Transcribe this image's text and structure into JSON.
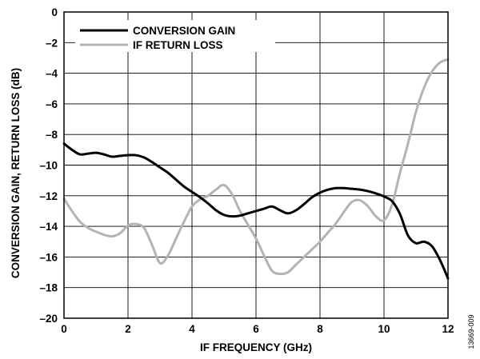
{
  "chart_data": {
    "type": "line",
    "title": "",
    "xlabel": "IF FREQUENCY (GHz)",
    "ylabel": "CONVERSION GAIN, RETURN LOSS (dB)",
    "xlim": [
      0,
      12
    ],
    "ylim": [
      -20,
      0
    ],
    "x_ticks": [
      "0",
      "2",
      "4",
      "6",
      "8",
      "10",
      "12"
    ],
    "y_ticks": [
      "0",
      "–2",
      "–4",
      "–6",
      "–8",
      "–10",
      "–12",
      "–14",
      "–16",
      "–18",
      "–20"
    ],
    "grid": true,
    "legend_position": "top-left",
    "figure_id": "13669-009",
    "series": [
      {
        "name": "CONVERSION GAIN",
        "color": "#000000",
        "x": [
          0,
          0.25,
          0.5,
          0.75,
          1.0,
          1.25,
          1.5,
          1.75,
          2.0,
          2.25,
          2.5,
          2.75,
          3.0,
          3.25,
          3.5,
          3.75,
          4.0,
          4.25,
          4.5,
          4.75,
          5.0,
          5.25,
          5.5,
          5.75,
          6.0,
          6.25,
          6.5,
          6.75,
          7.0,
          7.25,
          7.5,
          7.75,
          8.0,
          8.25,
          8.5,
          8.75,
          9.0,
          9.25,
          9.5,
          9.75,
          10.0,
          10.25,
          10.5,
          10.75,
          11.0,
          11.25,
          11.5,
          11.75,
          12.0
        ],
        "y": [
          -8.6,
          -9.0,
          -9.3,
          -9.25,
          -9.2,
          -9.3,
          -9.45,
          -9.4,
          -9.35,
          -9.35,
          -9.5,
          -9.8,
          -10.15,
          -10.5,
          -10.95,
          -11.4,
          -11.75,
          -12.1,
          -12.5,
          -12.95,
          -13.25,
          -13.35,
          -13.3,
          -13.15,
          -13.0,
          -12.85,
          -12.7,
          -12.95,
          -13.15,
          -12.95,
          -12.55,
          -12.1,
          -11.8,
          -11.6,
          -11.5,
          -11.5,
          -11.55,
          -11.6,
          -11.7,
          -11.85,
          -12.05,
          -12.35,
          -13.2,
          -14.6,
          -15.1,
          -15.0,
          -15.3,
          -16.2,
          -17.4
        ]
      },
      {
        "name": "IF RETURN LOSS",
        "color": "#b3b3b3",
        "x": [
          0,
          0.25,
          0.5,
          0.75,
          1.0,
          1.25,
          1.5,
          1.75,
          2.0,
          2.25,
          2.5,
          2.75,
          3.0,
          3.25,
          3.5,
          3.75,
          4.0,
          4.25,
          4.5,
          4.75,
          5.0,
          5.25,
          5.5,
          5.75,
          6.0,
          6.25,
          6.5,
          6.75,
          7.0,
          7.25,
          7.5,
          7.75,
          8.0,
          8.25,
          8.5,
          8.75,
          9.0,
          9.25,
          9.5,
          9.75,
          10.0,
          10.25,
          10.5,
          10.75,
          11.0,
          11.25,
          11.5,
          11.75,
          12.0
        ],
        "y": [
          -12.2,
          -13.0,
          -13.7,
          -14.1,
          -14.35,
          -14.55,
          -14.65,
          -14.45,
          -13.95,
          -13.85,
          -14.1,
          -15.2,
          -16.4,
          -15.9,
          -14.8,
          -13.7,
          -12.7,
          -12.25,
          -12.0,
          -11.6,
          -11.3,
          -11.9,
          -13.0,
          -13.9,
          -14.8,
          -15.9,
          -16.9,
          -17.1,
          -17.0,
          -16.5,
          -16.0,
          -15.5,
          -15.0,
          -14.4,
          -13.8,
          -13.05,
          -12.4,
          -12.3,
          -12.7,
          -13.35,
          -13.6,
          -12.6,
          -10.5,
          -8.6,
          -6.5,
          -4.95,
          -3.9,
          -3.3,
          -3.1
        ]
      }
    ]
  }
}
